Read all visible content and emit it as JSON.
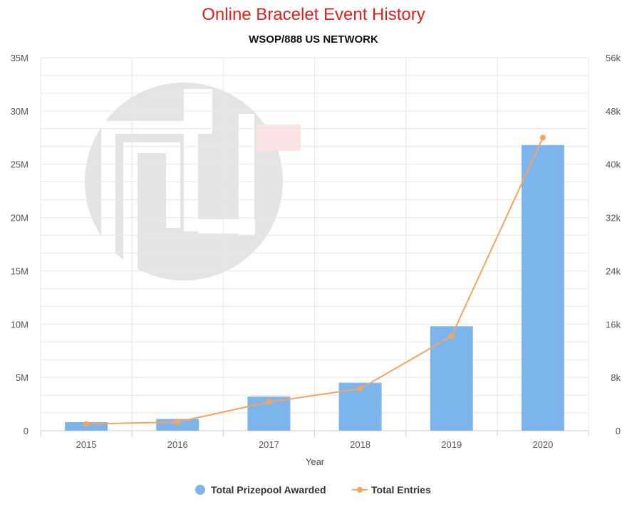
{
  "chart_data": {
    "type": "bar",
    "title": "Online Bracelet Event History",
    "subtitle": "WSOP/888 US NETWORK",
    "xlabel": "Year",
    "categories": [
      "2015",
      "2016",
      "2017",
      "2018",
      "2019",
      "2020"
    ],
    "y_left": {
      "range": [
        0,
        35000000
      ],
      "ticks": [
        0,
        5000000,
        10000000,
        15000000,
        20000000,
        25000000,
        30000000,
        35000000
      ],
      "tick_labels": [
        "0",
        "5M",
        "10M",
        "15M",
        "20M",
        "25M",
        "30M",
        "35M"
      ]
    },
    "y_right": {
      "range": [
        0,
        56000
      ],
      "ticks": [
        0,
        8000,
        16000,
        24000,
        32000,
        40000,
        48000,
        56000
      ],
      "tick_labels": [
        "0",
        "8k",
        "16k",
        "24k",
        "32k",
        "40k",
        "48k",
        "56k"
      ]
    },
    "series": [
      {
        "name": "Total Prizepool Awarded",
        "type": "bar",
        "axis": "left",
        "values": [
          800000,
          1100000,
          3200000,
          4500000,
          9800000,
          26800000
        ]
      },
      {
        "name": "Total Entries",
        "type": "line",
        "axis": "right",
        "values": [
          1000,
          1300,
          4300,
          6300,
          14200,
          44000
        ]
      }
    ],
    "grid": true,
    "legend_position": "bottom-center"
  },
  "colors": {
    "title": "#e0201a",
    "subtitle": "#111111",
    "bar": "#7cb5ec",
    "line": "#f7a35c",
    "grid": "#e6e6e6",
    "axis": "#cccccc",
    "watermark": "#e4e4e4",
    "watermark_accent": "#fbe3e3"
  },
  "watermark_icon": "pokernews-logo"
}
